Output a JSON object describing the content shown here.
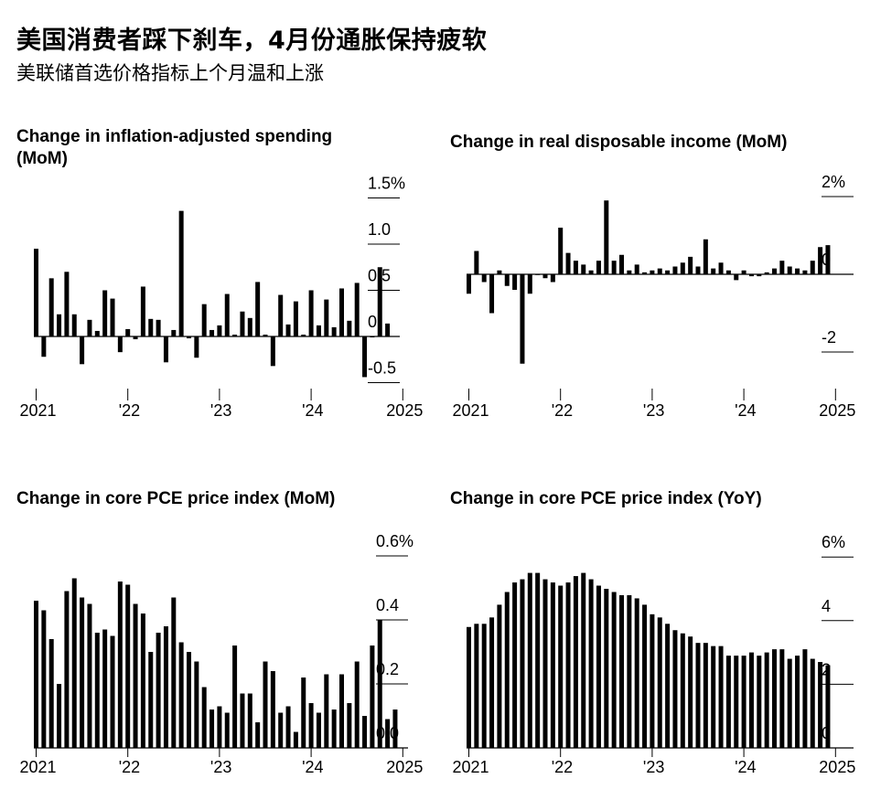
{
  "header": {
    "title": "美国消费者踩下刹车，4月份通胀保持疲软",
    "subtitle": "美联储首选价格指标上个月温和上涨"
  },
  "chart_data": [
    {
      "id": "spending",
      "type": "bar",
      "title": "Change in inflation-adjusted spending (MoM)",
      "x_tick_labels": [
        "2021",
        "'22",
        "'23",
        "'24",
        "2025"
      ],
      "y_tick_labels": [
        "1.5%",
        "1.0",
        "0.5",
        "0",
        "-0.5"
      ],
      "ylim": [
        -0.5,
        1.5
      ],
      "start": "2021-01",
      "values": [
        0.95,
        -0.22,
        0.63,
        0.24,
        0.7,
        0.24,
        -0.3,
        0.18,
        0.06,
        0.5,
        0.41,
        -0.17,
        0.08,
        -0.03,
        0.54,
        0.19,
        0.18,
        -0.28,
        0.07,
        1.36,
        -0.02,
        -0.23,
        0.35,
        0.07,
        0.12,
        0.46,
        0.02,
        0.27,
        0.2,
        0.59,
        0.02,
        -0.32,
        0.45,
        0.13,
        0.38,
        0.02,
        0.5,
        0.12,
        0.4,
        0.1,
        0.52,
        0.17,
        0.58,
        -0.44,
        -0.01,
        0.75,
        0.14
      ]
    },
    {
      "id": "income",
      "type": "bar",
      "title": "Change in real disposable income (MoM)",
      "x_tick_labels": [
        "2021",
        "'22",
        "'23",
        "'24",
        "2025"
      ],
      "y_tick_labels": [
        "2%",
        "0",
        "-2"
      ],
      "ylim": [
        -2.3,
        2.3
      ],
      "start": "2021-01",
      "values": [
        -0.5,
        0.6,
        -0.2,
        -1.0,
        0.1,
        -0.3,
        -0.4,
        -2.3,
        -0.5,
        0.0,
        -0.1,
        -0.2,
        1.2,
        0.55,
        0.35,
        0.25,
        0.1,
        0.35,
        1.9,
        0.35,
        0.5,
        0.1,
        0.25,
        0.05,
        0.1,
        0.15,
        0.1,
        0.2,
        0.3,
        0.45,
        0.2,
        0.9,
        0.15,
        0.3,
        0.1,
        -0.15,
        0.1,
        -0.05,
        -0.05,
        0.05,
        0.15,
        0.35,
        0.2,
        0.15,
        0.1,
        0.35,
        0.7,
        0.75
      ]
    },
    {
      "id": "core_mom",
      "type": "bar",
      "title": "Change in core PCE price index (MoM)",
      "x_tick_labels": [
        "2021",
        "'22",
        "'23",
        "'24",
        "2025"
      ],
      "y_tick_labels": [
        "0.6%",
        "0.4",
        "0.2",
        "0.0"
      ],
      "ylim": [
        0,
        0.6
      ],
      "start": "2021-01",
      "values": [
        0.46,
        0.43,
        0.34,
        0.2,
        0.49,
        0.53,
        0.47,
        0.45,
        0.36,
        0.37,
        0.35,
        0.52,
        0.51,
        0.45,
        0.42,
        0.3,
        0.36,
        0.38,
        0.47,
        0.33,
        0.3,
        0.27,
        0.19,
        0.12,
        0.13,
        0.11,
        0.32,
        0.17,
        0.17,
        0.08,
        0.27,
        0.24,
        0.11,
        0.13,
        0.05,
        0.22,
        0.14,
        0.11,
        0.23,
        0.12,
        0.23,
        0.14,
        0.27,
        0.1,
        0.32,
        0.4,
        0.09,
        0.12
      ]
    },
    {
      "id": "core_yoy",
      "type": "bar",
      "title": "Change in core PCE price index (YoY)",
      "x_tick_labels": [
        "2021",
        "'22",
        "'23",
        "'24",
        "2025"
      ],
      "y_tick_labels": [
        "6%",
        "4",
        "2",
        "0"
      ],
      "ylim": [
        0,
        6
      ],
      "start": "2021-01",
      "values": [
        3.8,
        3.9,
        3.9,
        4.1,
        4.5,
        4.9,
        5.2,
        5.3,
        5.5,
        5.5,
        5.3,
        5.2,
        5.1,
        5.2,
        5.4,
        5.5,
        5.3,
        5.1,
        5.0,
        4.9,
        4.8,
        4.8,
        4.7,
        4.5,
        4.2,
        4.1,
        3.9,
        3.7,
        3.6,
        3.5,
        3.3,
        3.3,
        3.2,
        3.2,
        2.9,
        2.9,
        2.9,
        3.0,
        2.9,
        3.0,
        3.1,
        3.1,
        2.8,
        2.9,
        3.1,
        2.8,
        2.7,
        2.6
      ]
    }
  ]
}
